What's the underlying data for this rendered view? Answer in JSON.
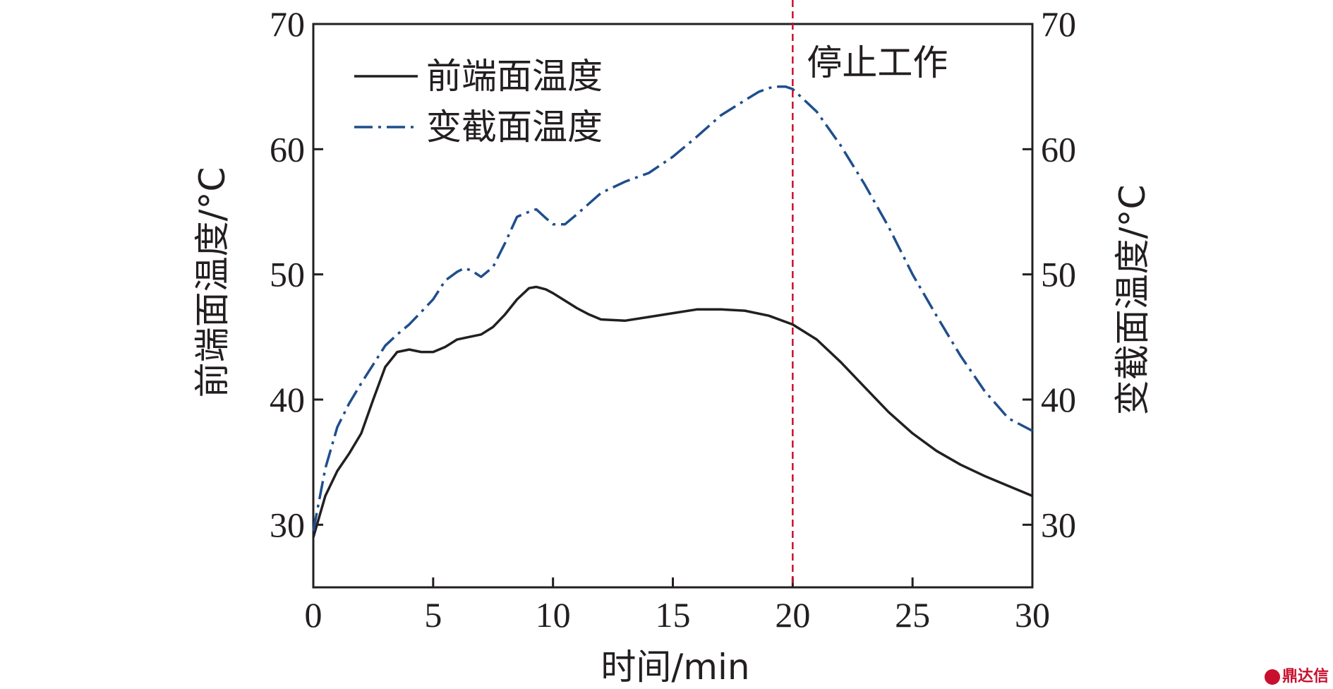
{
  "chart_data": {
    "type": "line",
    "title": "",
    "xlabel": "时间/min",
    "ylabel_left": "前端面温度/°C",
    "ylabel_right": "变截面温度/°C",
    "xlim": [
      0,
      30
    ],
    "ylim": [
      25,
      70
    ],
    "xticks": [
      0,
      5,
      10,
      15,
      20,
      25,
      30
    ],
    "yticks": [
      30,
      40,
      50,
      60,
      70
    ],
    "grid": false,
    "legend_position": "top-left",
    "series": [
      {
        "name": "前端面温度",
        "axis": "left",
        "color": "#231f20",
        "style": "solid",
        "x": [
          0,
          0.5,
          1,
          1.5,
          2,
          2.5,
          3,
          3.5,
          4,
          4.5,
          5,
          5.5,
          6,
          6.5,
          7,
          7.5,
          8,
          8.5,
          9,
          9.3,
          9.7,
          10,
          10.5,
          11,
          11.5,
          12,
          13,
          14,
          15,
          16,
          17,
          18,
          19,
          20,
          21,
          22,
          23,
          24,
          25,
          26,
          27,
          28,
          29,
          30
        ],
        "values": [
          29.0,
          32.3,
          34.3,
          35.7,
          37.3,
          40.0,
          42.6,
          43.8,
          44.0,
          43.8,
          43.8,
          44.2,
          44.8,
          45.0,
          45.2,
          45.8,
          46.8,
          48.0,
          48.9,
          49.0,
          48.8,
          48.5,
          47.9,
          47.3,
          46.8,
          46.4,
          46.3,
          46.6,
          46.9,
          47.2,
          47.2,
          47.1,
          46.7,
          46.0,
          44.8,
          43.0,
          41.0,
          39.0,
          37.3,
          35.9,
          34.8,
          33.9,
          33.1,
          32.3
        ]
      },
      {
        "name": "变截面温度",
        "axis": "right",
        "color": "#1f4e8c",
        "style": "dashdot",
        "x": [
          0,
          0.5,
          1,
          1.5,
          2,
          2.5,
          3,
          3.5,
          4,
          4.5,
          5,
          5.5,
          6,
          6.3,
          6.6,
          7,
          7.5,
          8,
          8.5,
          9,
          9.3,
          9.7,
          10,
          10.5,
          11,
          12,
          13,
          14,
          15,
          16,
          17,
          18,
          18.6,
          19.2,
          19.7,
          20,
          21,
          22,
          23,
          24,
          25,
          26,
          27,
          28,
          29,
          30
        ],
        "values": [
          29.5,
          34.5,
          37.8,
          39.7,
          41.3,
          42.8,
          44.3,
          45.2,
          46.0,
          47.0,
          48.0,
          49.5,
          50.2,
          50.5,
          50.3,
          49.8,
          50.6,
          52.5,
          54.6,
          55.0,
          55.2,
          54.5,
          54.0,
          54.0,
          54.8,
          56.5,
          57.4,
          58.1,
          59.4,
          61.0,
          62.7,
          63.9,
          64.6,
          65.0,
          65.0,
          64.8,
          63.0,
          60.3,
          57.2,
          53.8,
          50.0,
          46.7,
          43.5,
          40.7,
          38.5,
          37.5
        ]
      }
    ],
    "annotations": [
      {
        "type": "vline",
        "x": 20,
        "color": "#c8102e",
        "style": "dashed",
        "label": "停止工作"
      }
    ]
  },
  "watermark": {
    "text": "鼎达信"
  }
}
